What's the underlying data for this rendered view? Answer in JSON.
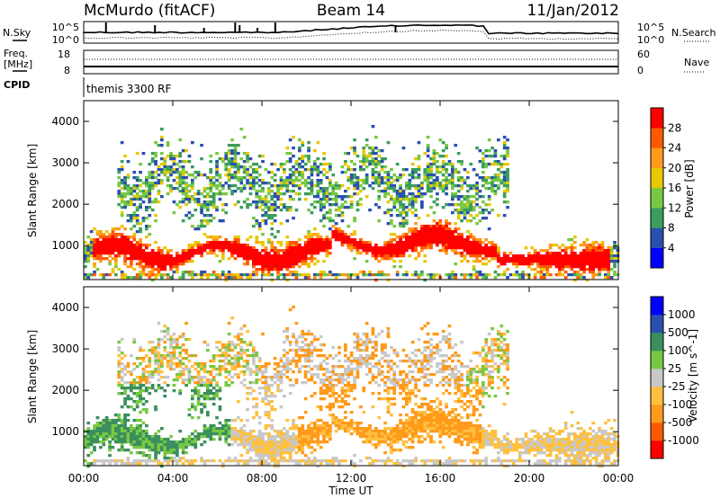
{
  "header": {
    "station": "McMurdo (fitACF)",
    "beam": "Beam 14",
    "date": "11/Jan/2012"
  },
  "sky_panel": {
    "left_label": "N.Sky",
    "right_label": "N.Search",
    "left_ticks": [
      "10^5",
      "10^0"
    ],
    "right_ticks": [
      "10^5",
      "10^0"
    ]
  },
  "freq_panel": {
    "left_label_1": "Freq.",
    "left_label_2": "[MHz]",
    "left_ticks": [
      "18",
      "8"
    ],
    "right_label": "Nave",
    "right_ticks": [
      "60",
      "0"
    ]
  },
  "cpid_panel": {
    "label": "CPID",
    "text": "themis 3300 RF"
  },
  "colors": {
    "power": [
      "#0000ff",
      "#2b4fb0",
      "#3b9d5e",
      "#78c843",
      "#e8c800",
      "#ff9a1a",
      "#ff5a00",
      "#ff0000"
    ],
    "velocity": [
      "#ff0000",
      "#ff5a00",
      "#ff9a1a",
      "#ffc040",
      "#c8c8c8",
      "#78c843",
      "#3b8f5e",
      "#2b4fb0",
      "#0000ff"
    ],
    "ground": "#c8c8c8"
  },
  "chart_data": [
    {
      "type": "heatmap",
      "title": "",
      "xlabel": "Time UT",
      "ylabel": "Slant Range [km]",
      "x_ticks": [
        "00:00",
        "04:00",
        "08:00",
        "12:00",
        "16:00",
        "20:00",
        "00:00"
      ],
      "y_ticks": [
        "1000",
        "2000",
        "3000",
        "4000"
      ],
      "xlim_hours": [
        0,
        24
      ],
      "ylim_km": [
        180,
        4500
      ],
      "colorbar_label": "Power [dB]",
      "colorbar_ticks": [
        "4",
        "8",
        "12",
        "16",
        "20",
        "24",
        "28"
      ],
      "colorbar_range": [
        0,
        32
      ],
      "features": [
        {
          "t0": 0.0,
          "t1": 5.2,
          "r_center": 900,
          "r_width": 500,
          "level": "high"
        },
        {
          "t0": 5.2,
          "t1": 11.0,
          "r_center": 780,
          "r_width": 420,
          "level": "high"
        },
        {
          "t0": 11.0,
          "t1": 18.5,
          "r_center": 1050,
          "r_width": 650,
          "level": "high"
        },
        {
          "t0": 18.5,
          "t1": 24.0,
          "r_center": 750,
          "r_width": 400,
          "level": "high"
        },
        {
          "t0": 1.5,
          "t1": 19.0,
          "r_center": 2600,
          "r_width": 900,
          "level": "low"
        }
      ]
    },
    {
      "type": "heatmap",
      "title": "",
      "xlabel": "Time UT",
      "ylabel": "Slant Range [km]",
      "x_ticks": [
        "00:00",
        "04:00",
        "08:00",
        "12:00",
        "16:00",
        "20:00",
        "00:00"
      ],
      "y_ticks": [
        "1000",
        "2000",
        "3000",
        "4000"
      ],
      "xlim_hours": [
        0,
        24
      ],
      "ylim_km": [
        180,
        4500
      ],
      "colorbar_label": "Velocity [m s^-1]",
      "colorbar_ticks": [
        "1000",
        "500",
        "100",
        "25",
        "-25",
        "-100",
        "-500",
        "-1000"
      ],
      "features": [
        {
          "t0": 0.0,
          "t1": 6.5,
          "r_center": 1150,
          "r_width": 700,
          "velocity": "positive 100-500 m/s"
        },
        {
          "t0": 9.5,
          "t1": 17.8,
          "r_center": 1200,
          "r_width": 800,
          "velocity": "negative -100 to -500 m/s"
        },
        {
          "t0": 20.5,
          "t1": 24.0,
          "r_center": 650,
          "r_width": 300,
          "velocity": "negative -25 to -100 m/s"
        },
        {
          "t0": 8.0,
          "t1": 17.0,
          "r_center": 2600,
          "r_width": 800,
          "velocity": "ground scatter -25 to 25 m/s"
        }
      ]
    }
  ],
  "x_axis_label": "Time UT",
  "x_axis_ticks": [
    "00:00",
    "04:00",
    "08:00",
    "12:00",
    "16:00",
    "20:00",
    "00:00"
  ]
}
